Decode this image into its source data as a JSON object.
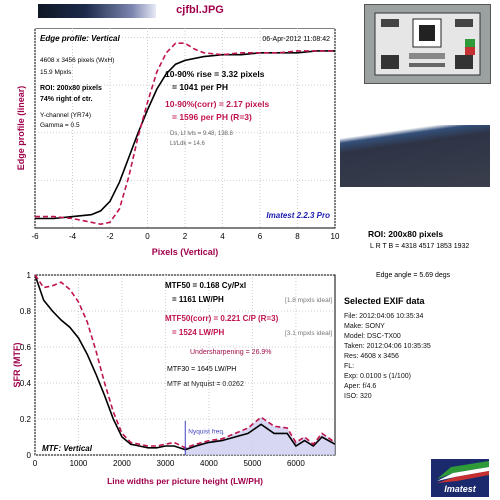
{
  "header": {
    "filename": "cjfbl.JPG"
  },
  "edge_panel": {
    "title": "Edge profile: Vertical",
    "timestamp": "06-Apr-2012 11:08:42",
    "image_size": "4608 x 3456 pixels (WxH)",
    "megapixels": "15.9 Mpxls",
    "roi": "ROI: 200x80 pixels",
    "position": "74% right of ctr.",
    "channel": "Y-channel  (YR74)",
    "gamma": "Gamma = 0.5",
    "rise": "10-90% rise = 3.32 pixels",
    "rise_ph": "= 1041 per PH",
    "rise_corr": "10-90%(corr) = 2.17 pixels",
    "rise_corr_ph": "= 1596 per PH  (R=3)",
    "levels": "Ds, Lt lvls = 9.48, 138.8",
    "ratio": "Lt/Ldk = 14.6",
    "brand": "Imatest 2.2.3 Pro"
  },
  "mtf_panel": {
    "title": "MTF: Vertical",
    "mtf50": "MTF50 = 0.168 Cy/Pxl",
    "mtf50_lw": "= 1161 LW/PH",
    "ideal1": "[1.8 mpxls ideal]",
    "mtf50_corr": "MTF50(corr) = 0.221 C/P  (R=3)",
    "mtf50_corr_lw": "= 1524 LW/PH",
    "ideal2": "[3.1 mpxls ideal]",
    "undersharp": "Undersharpening = 26.9%",
    "mtf30": "MTF30 = 1645 LW/PH",
    "nyquist_val": "MTF at Nyquist = 0.0262",
    "nyquist_label": "Nyquist freq."
  },
  "right": {
    "roi_title": "ROI: 200x80 pixels",
    "lrtb": "L R T B = 4318 4517  1853 1932",
    "edge_angle": "Edge angle = 5.69 degs",
    "exif_title": "Selected EXIF data",
    "exif": [
      "File:  2012:04:06 10:35:34",
      "Make:  SONY",
      "Model:  DSC-TX00",
      "Taken:  2012:04:06 10:35:35",
      "Res:  4608 x 3456",
      "FL:",
      "Exp:  0.0100 s  (1/100)",
      "Aper:  f/4.6",
      "ISO:  320"
    ],
    "logo_text": "Imatest"
  },
  "colors": {
    "plain": "#000000",
    "corrected": "#c0144c",
    "nyquist": "#4040c0"
  },
  "chart_data": [
    {
      "type": "line",
      "xlabel": "Pixels (Vertical)",
      "ylabel": "Edge profile (linear)",
      "xlim": [
        -6,
        10
      ],
      "x_ticks": [
        -6,
        -4,
        -2,
        0,
        2,
        4,
        6,
        8,
        10
      ],
      "grid": true,
      "series": [
        {
          "x": [
            -6,
            -5,
            -4,
            -3,
            -2.5,
            -2,
            -1.5,
            -1,
            -0.5,
            0,
            0.5,
            1,
            1.5,
            2,
            3,
            4,
            5,
            6,
            7,
            8,
            9,
            10
          ],
          "y": [
            0.05,
            0.05,
            0.06,
            0.07,
            0.09,
            0.14,
            0.24,
            0.37,
            0.5,
            0.62,
            0.73,
            0.81,
            0.86,
            0.88,
            0.9,
            0.91,
            0.91,
            0.92,
            0.92,
            0.92,
            0.93,
            0.93
          ]
        },
        {
          "x": [
            -6,
            -5,
            -4,
            -3,
            -2.5,
            -2,
            -1.5,
            -1,
            -0.5,
            0,
            0.5,
            1,
            1.5,
            2,
            2.5,
            3,
            4,
            5,
            6,
            7,
            8,
            9,
            10
          ],
          "y": [
            0.06,
            0.06,
            0.05,
            0.03,
            0.02,
            0.03,
            0.1,
            0.27,
            0.48,
            0.66,
            0.82,
            0.92,
            0.97,
            0.97,
            0.94,
            0.92,
            0.91,
            0.92,
            0.92,
            0.92,
            0.93,
            0.93,
            0.93
          ]
        }
      ]
    },
    {
      "type": "line",
      "xlabel": "Line widths per picture height (LW/PH)",
      "ylabel": "SFR (MTF)",
      "xlim": [
        0,
        6900
      ],
      "ylim": [
        0,
        1
      ],
      "x_ticks": [
        0,
        1000,
        2000,
        3000,
        4000,
        5000,
        6000
      ],
      "y_ticks": [
        0,
        0.2,
        0.4,
        0.6,
        0.8,
        1
      ],
      "nyquist": 3456,
      "grid": true,
      "series": [
        {
          "x": [
            0,
            200,
            400,
            600,
            800,
            1000,
            1200,
            1400,
            1600,
            1800,
            2000,
            2200,
            2400,
            2600,
            2800,
            3000,
            3200,
            3456,
            3700,
            4000,
            4300,
            4600,
            4900,
            5200,
            5500,
            5800,
            6000,
            6200,
            6400,
            6600,
            6900
          ],
          "y": [
            1,
            0.86,
            0.8,
            0.75,
            0.71,
            0.65,
            0.56,
            0.45,
            0.33,
            0.2,
            0.1,
            0.06,
            0.05,
            0.04,
            0.04,
            0.05,
            0.05,
            0.03,
            0.05,
            0.07,
            0.08,
            0.1,
            0.12,
            0.17,
            0.12,
            0.12,
            0.05,
            0.08,
            0.05,
            0.1,
            0.06
          ]
        },
        {
          "x": [
            0,
            200,
            400,
            600,
            800,
            1000,
            1200,
            1400,
            1600,
            1800,
            2000,
            2200,
            2400,
            2600,
            2800,
            3000,
            3200,
            3456,
            3700,
            4000,
            4300,
            4600,
            4900,
            5200,
            5500,
            5800,
            6000,
            6200,
            6400,
            6600,
            6900
          ],
          "y": [
            1,
            0.93,
            0.94,
            0.96,
            0.92,
            0.85,
            0.74,
            0.58,
            0.4,
            0.24,
            0.12,
            0.07,
            0.06,
            0.05,
            0.05,
            0.06,
            0.07,
            0.04,
            0.06,
            0.08,
            0.09,
            0.12,
            0.15,
            0.21,
            0.16,
            0.15,
            0.07,
            0.1,
            0.06,
            0.12,
            0.07
          ]
        }
      ]
    }
  ]
}
